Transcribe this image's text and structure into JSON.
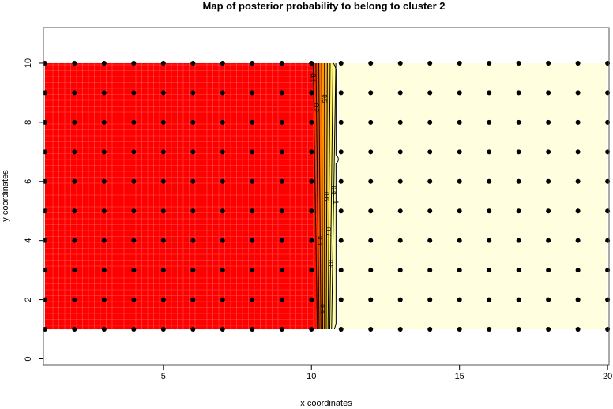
{
  "chart_data": {
    "type": "heatmap",
    "title": "Map of posterior probability to belong to cluster  2",
    "xlabel": "x coordinates",
    "ylabel": "y coordinates",
    "xlim": [
      0.95,
      20.05
    ],
    "ylim": [
      -0.2,
      11.2
    ],
    "xticks": [
      5,
      10,
      15,
      20
    ],
    "yticks": [
      0,
      2,
      4,
      6,
      8,
      10
    ],
    "grid": false,
    "points": {
      "x": [
        1,
        2,
        3,
        4,
        5,
        6,
        7,
        8,
        9,
        10,
        11,
        12,
        13,
        14,
        15,
        16,
        17,
        18,
        19,
        20
      ],
      "y": [
        1,
        2,
        3,
        4,
        5,
        6,
        7,
        8,
        9,
        10
      ]
    },
    "surface_extent": {
      "x": [
        1,
        20
      ],
      "y": [
        1,
        10
      ]
    },
    "contour_levels": [
      0.1,
      0.2,
      0.3,
      0.4,
      0.5,
      0.6,
      0.7,
      0.8,
      0.9,
      1
    ],
    "contour_labels": [
      "0.1",
      "0.2",
      "0.3",
      "0.4",
      "0.5",
      "0.6",
      "0.7",
      "0.8",
      "0.9",
      "1"
    ],
    "transition_x": [
      10,
      11
    ],
    "colors": {
      "low": "#FF0000",
      "mid": "#FFA500",
      "high_mid": "#FFFF00",
      "high": "#FFFFE0",
      "points": "#000000"
    }
  }
}
